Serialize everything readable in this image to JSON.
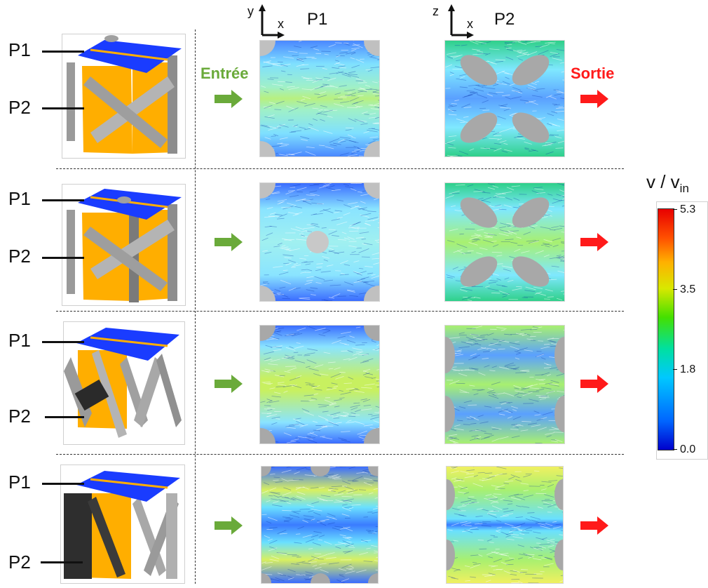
{
  "labels": {
    "p1": "P1",
    "p2": "P2",
    "entree": "Entrée",
    "sortie": "Sortie",
    "x": "x",
    "y": "y",
    "z": "z"
  },
  "colorbar": {
    "title_main": "v / v",
    "title_sub": "in",
    "ticks": [
      "5.3",
      "3.5",
      "1.8",
      "0.0"
    ],
    "min": 0.0,
    "max": 5.3
  },
  "colors": {
    "plane_p1": "#1a3cff",
    "plane_p2": "#ffae00",
    "strut": "#a9a9a9",
    "inlet_arrow": "#6aaa3a",
    "outlet_arrow": "#ff1a1a",
    "obstacle": "#c0c0c0"
  },
  "rows": [
    {
      "p1_obstacles": [
        "corner-tl",
        "corner-tr",
        "corner-bl",
        "corner-br"
      ],
      "p2_obstacles": [
        "ellipse-4-diagonal"
      ]
    },
    {
      "p1_obstacles": [
        "corner-tl",
        "corner-tr",
        "corner-bl",
        "corner-br",
        "center-circle"
      ],
      "p2_obstacles": [
        "ellipse-4-diagonal"
      ]
    },
    {
      "p1_obstacles": [
        "corner-tl",
        "corner-tr",
        "corner-bl",
        "corner-br"
      ],
      "p2_obstacles": [
        "side-half-ellipses"
      ]
    },
    {
      "p1_obstacles": [
        "top-circles",
        "bottom-circles",
        "corners"
      ],
      "p2_obstacles": [
        "side-semicircles"
      ]
    }
  ]
}
